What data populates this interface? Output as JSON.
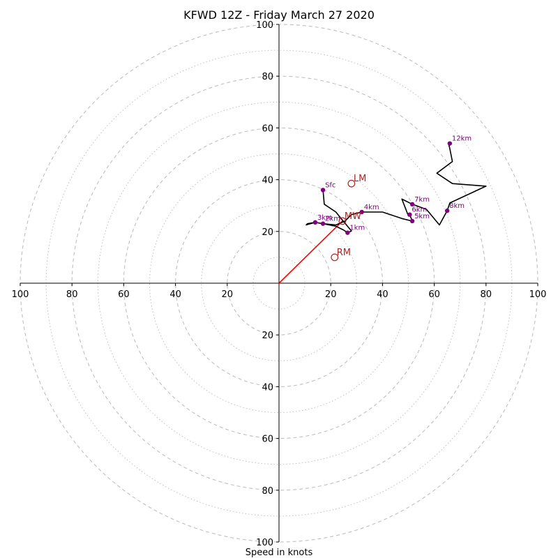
{
  "chart_data": {
    "type": "hodograph",
    "title": "KFWD 12Z - Friday March 27 2020",
    "xlabel": "Speed in knots",
    "range": [
      -100,
      100
    ],
    "ring_major": [
      20,
      40,
      60,
      80,
      100
    ],
    "ring_minor": [
      10,
      30,
      50,
      70,
      90
    ],
    "grid": true,
    "x_ticks": [
      {
        "value": -100,
        "label": "100"
      },
      {
        "value": -80,
        "label": "80"
      },
      {
        "value": -60,
        "label": "60"
      },
      {
        "value": -40,
        "label": "40"
      },
      {
        "value": -20,
        "label": "20"
      },
      {
        "value": 20,
        "label": "20"
      },
      {
        "value": 40,
        "label": "40"
      },
      {
        "value": 60,
        "label": "60"
      },
      {
        "value": 80,
        "label": "80"
      },
      {
        "value": 100,
        "label": "100"
      }
    ],
    "y_ticks": [
      {
        "value": 100,
        "label": "100"
      },
      {
        "value": 80,
        "label": "80"
      },
      {
        "value": 60,
        "label": "60"
      },
      {
        "value": 40,
        "label": "40"
      },
      {
        "value": 20,
        "label": "20"
      },
      {
        "value": -20,
        "label": "20"
      },
      {
        "value": -40,
        "label": "40"
      },
      {
        "value": -60,
        "label": "60"
      },
      {
        "value": -80,
        "label": "80"
      },
      {
        "value": -100,
        "label": "100"
      }
    ],
    "trace": [
      [
        17,
        36
      ],
      [
        17.5,
        30.5
      ],
      [
        22,
        27.5
      ],
      [
        24,
        25
      ],
      [
        28,
        20.2
      ],
      [
        26.5,
        19.5
      ],
      [
        25,
        20.5
      ],
      [
        22,
        22
      ],
      [
        17,
        23
      ],
      [
        14,
        23.5
      ],
      [
        11,
        23
      ],
      [
        10.5,
        22.5
      ],
      [
        11.5,
        22.8
      ],
      [
        14,
        23.5
      ],
      [
        17,
        23
      ],
      [
        22,
        22.5
      ],
      [
        25.5,
        24
      ],
      [
        28,
        26.5
      ],
      [
        32,
        27.5
      ],
      [
        40,
        27.5
      ],
      [
        47.5,
        25
      ],
      [
        51.5,
        24
      ],
      [
        50.5,
        26.5
      ],
      [
        50,
        26
      ],
      [
        47.5,
        32.5
      ],
      [
        51.5,
        30.5
      ],
      [
        57,
        28.5
      ],
      [
        62,
        22.5
      ],
      [
        65,
        28
      ],
      [
        66,
        31
      ],
      [
        80,
        37.5
      ],
      [
        67,
        38.5
      ],
      [
        61,
        42.5
      ],
      [
        67,
        47
      ],
      [
        66,
        52
      ],
      [
        65.5,
        54
      ],
      [
        66,
        54
      ]
    ],
    "points": [
      {
        "label": "Sfc",
        "u": 17,
        "v": 36
      },
      {
        "label": "1km",
        "u": 26.5,
        "v": 19.5
      },
      {
        "label": "2km",
        "u": 17,
        "v": 23
      },
      {
        "label": "3km",
        "u": 14,
        "v": 23.5
      },
      {
        "label": "4km",
        "u": 32,
        "v": 27.5
      },
      {
        "label": "5km",
        "u": 51.5,
        "v": 24
      },
      {
        "label": "6km",
        "u": 50.5,
        "v": 26.5
      },
      {
        "label": "7km",
        "u": 51.5,
        "v": 30.5
      },
      {
        "label": "8km",
        "u": 65,
        "v": 28
      },
      {
        "label": "12km",
        "u": 66,
        "v": 54
      }
    ],
    "storm_motion": [
      {
        "label": "LM",
        "u": 28,
        "v": 38.5
      },
      {
        "label": "MW",
        "u": 24.5,
        "v": 24
      },
      {
        "label": "RM",
        "u": 21.5,
        "v": 10
      }
    ],
    "mean_wind_vector": {
      "u": 24.5,
      "v": 24
    },
    "colors": {
      "trace": "#000000",
      "points": "#800080",
      "motion": "#b22222",
      "vector": "#ff0000",
      "grid": "#bfbfbf"
    }
  }
}
